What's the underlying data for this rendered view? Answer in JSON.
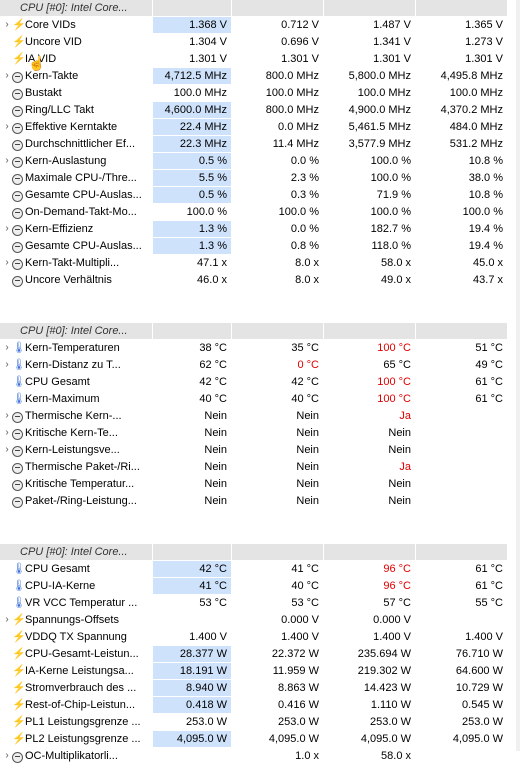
{
  "sections": [
    {
      "title": "CPU [#0]: Intel Core...",
      "rows": [
        {
          "icon": "bolt",
          "expand": true,
          "label": "Core VIDs",
          "cur": "1.368 V",
          "min": "0.712 V",
          "max": "1.487 V",
          "avg": "1.365 V",
          "hl": true
        },
        {
          "icon": "bolt",
          "expand": false,
          "label": "Uncore VID",
          "cur": "1.304 V",
          "min": "0.696 V",
          "max": "1.341 V",
          "avg": "1.273 V"
        },
        {
          "icon": "bolt",
          "expand": false,
          "label": "IA VID",
          "cur": "1.301 V",
          "min": "1.301 V",
          "max": "1.301 V",
          "avg": "1.301 V"
        },
        {
          "icon": "clock",
          "expand": true,
          "label": "Kern-Takte",
          "cur": "4,712.5 MHz",
          "min": "800.0 MHz",
          "max": "5,800.0 MHz",
          "avg": "4,495.8 MHz",
          "hl": true
        },
        {
          "icon": "clock",
          "expand": false,
          "label": "Bustakt",
          "cur": "100.0 MHz",
          "min": "100.0 MHz",
          "max": "100.0 MHz",
          "avg": "100.0 MHz"
        },
        {
          "icon": "clock",
          "expand": false,
          "label": "Ring/LLC Takt",
          "cur": "4,600.0 MHz",
          "min": "800.0 MHz",
          "max": "4,900.0 MHz",
          "avg": "4,370.2 MHz",
          "hl": true
        },
        {
          "icon": "clock",
          "expand": true,
          "label": "Effektive Kerntakte",
          "cur": "22.4 MHz",
          "min": "0.0 MHz",
          "max": "5,461.5 MHz",
          "avg": "484.0 MHz",
          "hl": true
        },
        {
          "icon": "clock",
          "expand": false,
          "label": "Durchschnittlicher Ef...",
          "cur": "22.3 MHz",
          "min": "11.4 MHz",
          "max": "3,577.9 MHz",
          "avg": "531.2 MHz",
          "hl": true
        },
        {
          "icon": "clock",
          "expand": true,
          "label": "Kern-Auslastung",
          "cur": "0.5 %",
          "min": "0.0 %",
          "max": "100.0 %",
          "avg": "10.8 %",
          "hl": true
        },
        {
          "icon": "clock",
          "expand": false,
          "label": "Maximale CPU-/Thre...",
          "cur": "5.5 %",
          "min": "2.3 %",
          "max": "100.0 %",
          "avg": "38.0 %",
          "hl": true
        },
        {
          "icon": "clock",
          "expand": false,
          "label": "Gesamte CPU-Auslas...",
          "cur": "0.5 %",
          "min": "0.3 %",
          "max": "71.9 %",
          "avg": "10.8 %",
          "hl": true
        },
        {
          "icon": "clock",
          "expand": false,
          "label": "On-Demand-Takt-Mo...",
          "cur": "100.0 %",
          "min": "100.0 %",
          "max": "100.0 %",
          "avg": "100.0 %"
        },
        {
          "icon": "clock",
          "expand": true,
          "label": "Kern-Effizienz",
          "cur": "1.3 %",
          "min": "0.0 %",
          "max": "182.7 %",
          "avg": "19.4 %",
          "hl": true
        },
        {
          "icon": "clock",
          "expand": false,
          "label": "Gesamte CPU-Auslas...",
          "cur": "1.3 %",
          "min": "0.8 %",
          "max": "118.0 %",
          "avg": "19.4 %",
          "hl": true
        },
        {
          "icon": "clock",
          "expand": true,
          "label": "Kern-Takt-Multipli...",
          "cur": "47.1 x",
          "min": "8.0 x",
          "max": "58.0 x",
          "avg": "45.0 x"
        },
        {
          "icon": "clock",
          "expand": false,
          "label": "Uncore Verhältnis",
          "cur": "46.0 x",
          "min": "8.0 x",
          "max": "49.0 x",
          "avg": "43.7 x"
        }
      ]
    },
    {
      "title": "CPU [#0]: Intel Core...",
      "rows": [
        {
          "icon": "therm",
          "expand": true,
          "label": "Kern-Temperaturen",
          "cur": "38 °C",
          "min": "35 °C",
          "max": "100 °C",
          "avg": "51 °C",
          "maxRed": true
        },
        {
          "icon": "therm",
          "expand": true,
          "label": "Kern-Distanz zu T...",
          "cur": "62 °C",
          "min": "0 °C",
          "max": "65 °C",
          "avg": "49 °C",
          "minRed": true
        },
        {
          "icon": "therm",
          "expand": false,
          "label": "CPU Gesamt",
          "cur": "42 °C",
          "min": "42 °C",
          "max": "100 °C",
          "avg": "61 °C",
          "maxRed": true
        },
        {
          "icon": "therm",
          "expand": false,
          "label": "Kern-Maximum",
          "cur": "40 °C",
          "min": "40 °C",
          "max": "100 °C",
          "avg": "61 °C",
          "maxRed": true
        },
        {
          "icon": "clock",
          "expand": true,
          "label": "Thermische Kern-...",
          "cur": "Nein",
          "min": "Nein",
          "max": "Ja",
          "avg": "",
          "maxRed": true
        },
        {
          "icon": "clock",
          "expand": true,
          "label": "Kritische Kern-Te...",
          "cur": "Nein",
          "min": "Nein",
          "max": "Nein",
          "avg": ""
        },
        {
          "icon": "clock",
          "expand": true,
          "label": "Kern-Leistungsve...",
          "cur": "Nein",
          "min": "Nein",
          "max": "Nein",
          "avg": ""
        },
        {
          "icon": "clock",
          "expand": false,
          "label": "Thermische Paket-/Ri...",
          "cur": "Nein",
          "min": "Nein",
          "max": "Ja",
          "avg": "",
          "maxRed": true
        },
        {
          "icon": "clock",
          "expand": false,
          "label": "Kritische Temperatur...",
          "cur": "Nein",
          "min": "Nein",
          "max": "Nein",
          "avg": ""
        },
        {
          "icon": "clock",
          "expand": false,
          "label": "Paket-/Ring-Leistung...",
          "cur": "Nein",
          "min": "Nein",
          "max": "Nein",
          "avg": ""
        }
      ]
    },
    {
      "title": "CPU [#0]: Intel Core...",
      "rows": [
        {
          "icon": "therm",
          "expand": false,
          "label": "CPU Gesamt",
          "cur": "42 °C",
          "min": "41 °C",
          "max": "96 °C",
          "avg": "61 °C",
          "hl": true,
          "maxRed": true
        },
        {
          "icon": "therm",
          "expand": false,
          "label": "CPU-IA-Kerne",
          "cur": "41 °C",
          "min": "40 °C",
          "max": "96 °C",
          "avg": "61 °C",
          "hl": true,
          "maxRed": true
        },
        {
          "icon": "therm",
          "expand": false,
          "label": "VR VCC Temperatur ...",
          "cur": "53 °C",
          "min": "53 °C",
          "max": "57 °C",
          "avg": "55 °C"
        },
        {
          "icon": "bolt",
          "expand": true,
          "label": "Spannungs-Offsets",
          "cur": "",
          "min": "0.000 V",
          "max": "0.000 V",
          "avg": ""
        },
        {
          "icon": "bolt",
          "expand": false,
          "label": "VDDQ TX Spannung",
          "cur": "1.400 V",
          "min": "1.400 V",
          "max": "1.400 V",
          "avg": "1.400 V"
        },
        {
          "icon": "bolt",
          "expand": false,
          "label": "CPU-Gesamt-Leistun...",
          "cur": "28.377 W",
          "min": "22.372 W",
          "max": "235.694 W",
          "avg": "76.710 W",
          "hl": true
        },
        {
          "icon": "bolt",
          "expand": false,
          "label": "IA-Kerne Leistungsa...",
          "cur": "18.191 W",
          "min": "11.959 W",
          "max": "219.302 W",
          "avg": "64.600 W",
          "hl": true
        },
        {
          "icon": "bolt",
          "expand": false,
          "label": "Stromverbrauch des ...",
          "cur": "8.940 W",
          "min": "8.863 W",
          "max": "14.423 W",
          "avg": "10.729 W",
          "hl": true
        },
        {
          "icon": "bolt",
          "expand": false,
          "label": "Rest-of-Chip-Leistun...",
          "cur": "0.418 W",
          "min": "0.416 W",
          "max": "1.110 W",
          "avg": "0.545 W",
          "hl": true
        },
        {
          "icon": "bolt",
          "expand": false,
          "label": "PL1 Leistungsgrenze ...",
          "cur": "253.0 W",
          "min": "253.0 W",
          "max": "253.0 W",
          "avg": "253.0 W"
        },
        {
          "icon": "bolt",
          "expand": false,
          "label": "PL2 Leistungsgrenze ...",
          "cur": "4,095.0 W",
          "min": "4,095.0 W",
          "max": "4,095.0 W",
          "avg": "4,095.0 W",
          "hl": true
        },
        {
          "icon": "clock",
          "expand": true,
          "label": "OC-Multiplikatorli...",
          "cur": "",
          "min": "1.0 x",
          "max": "58.0 x",
          "avg": ""
        }
      ]
    }
  ],
  "colors": {
    "highlight": "#cfe2fb",
    "alert": "#e00000",
    "header": "#e4e4e4"
  }
}
